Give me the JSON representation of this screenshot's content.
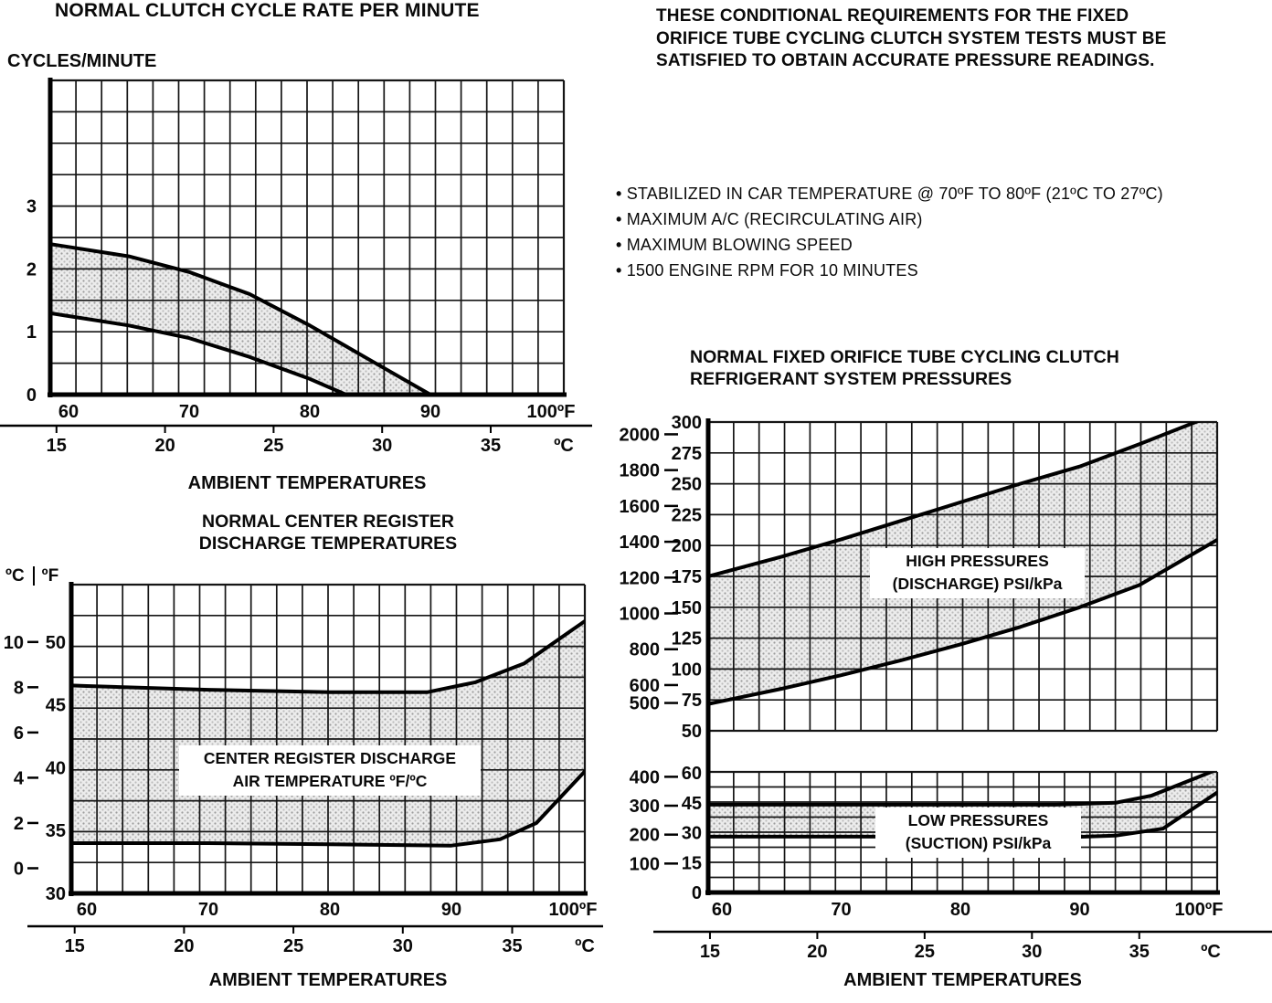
{
  "page": {
    "background": "#ffffff",
    "ink": "#0a0a0a"
  },
  "conditions": {
    "heading": "THESE CONDITIONAL REQUIREMENTS FOR THE FIXED ORIFICE TUBE CYCLING CLUTCH SYSTEM TESTS MUST BE SATISFIED TO OBTAIN ACCURATE PRESSURE READINGS.",
    "bullets": [
      "STABILIZED IN CAR TEMPERATURE @ 70ºF TO 80ºF (21ºC TO 27ºC)",
      "MAXIMUM A/C (RECIRCULATING AIR)",
      "MAXIMUM BLOWING SPEED",
      "1500 ENGINE RPM FOR 10 MINUTES"
    ]
  },
  "chart_data": [
    {
      "id": "normal-clutch-cycle-rate",
      "type": "line",
      "title": "NORMAL CLUTCH CYCLE RATE PER MINUTE",
      "ylabel": "CYCLES/MINUTE",
      "xlabel": "AMBIENT TEMPERATURES",
      "ylim": [
        0,
        5
      ],
      "y_ticks": [
        0,
        1,
        2,
        3
      ],
      "x_axis_f": {
        "ticks": [
          60,
          70,
          80,
          90,
          100
        ],
        "unit": "ºF"
      },
      "x_axis_c": {
        "ticks": [
          15,
          20,
          25,
          30,
          35
        ],
        "unit": "ºC"
      },
      "shaded_band_between_curves": true,
      "series": [
        {
          "name": "maximum-cycle-rate",
          "x_f": [
            60,
            65,
            70,
            75,
            80,
            85,
            90
          ],
          "y": [
            2.35,
            2.2,
            1.95,
            1.6,
            1.1,
            0.55,
            0
          ]
        },
        {
          "name": "minimum-cycle-rate",
          "x_f": [
            60,
            65,
            70,
            75,
            80,
            83
          ],
          "y": [
            1.25,
            1.1,
            0.9,
            0.6,
            0.25,
            0
          ]
        }
      ]
    },
    {
      "id": "normal-center-register-discharge-temperatures",
      "type": "line",
      "title_lines": [
        "NORMAL CENTER REGISTER",
        "DISCHARGE TEMPERATURES"
      ],
      "xlabel": "AMBIENT TEMPERATURES",
      "annotation_lines": [
        "CENTER REGISTER DISCHARGE",
        "AIR TEMPERATURE ºF/ºC"
      ],
      "y_axis_c": {
        "label": "ºC",
        "ticks": [
          10,
          8,
          6,
          4,
          2,
          0
        ]
      },
      "y_axis_f": {
        "label": "ºF",
        "ticks": [
          50,
          45,
          40,
          35,
          30
        ]
      },
      "x_axis_f": {
        "ticks": [
          60,
          70,
          80,
          90,
          100
        ],
        "unit": "ºF"
      },
      "x_axis_c": {
        "ticks": [
          15,
          20,
          25,
          30,
          35
        ],
        "unit": "ºC"
      },
      "shaded_band_between_curves": true,
      "series": [
        {
          "name": "maximum-discharge-temp-f",
          "x_f": [
            60,
            70,
            80,
            88,
            92,
            96,
            100
          ],
          "y": [
            46.5,
            46.2,
            46,
            46,
            46.8,
            48.3,
            51
          ]
        },
        {
          "name": "minimum-discharge-temp-f",
          "x_f": [
            60,
            70,
            80,
            90,
            94,
            97,
            100
          ],
          "y": [
            34,
            34,
            33.9,
            33.8,
            34.3,
            35.6,
            38.7
          ]
        }
      ]
    },
    {
      "id": "normal-refrigerant-system-pressures",
      "type": "line",
      "title_lines": [
        "NORMAL FIXED ORIFICE TUBE CYCLING CLUTCH",
        "REFRIGERANT SYSTEM PRESSURES"
      ],
      "xlabel": "AMBIENT TEMPERATURES",
      "x_axis_f": {
        "ticks": [
          60,
          70,
          80,
          90,
          100
        ],
        "unit": "ºF"
      },
      "x_axis_c": {
        "ticks": [
          15,
          20,
          25,
          30,
          35
        ],
        "unit": "ºC"
      },
      "panels": [
        {
          "name": "high-pressures-discharge",
          "label_lines": [
            "HIGH PRESSURES",
            "(DISCHARGE) PSI/kPa"
          ],
          "kpa_ticks": [
            2000,
            1800,
            1600,
            1400,
            1200,
            1000,
            800,
            600,
            500
          ],
          "psi_ticks": [
            300,
            275,
            250,
            225,
            200,
            175,
            150,
            125,
            100,
            75,
            50
          ],
          "shaded_band_between_curves": true,
          "series": [
            {
              "name": "high-pressure-max-psi",
              "x_f": [
                60,
                65,
                70,
                75,
                80,
                85,
                90,
                95,
                100
              ],
              "y": [
                178,
                191,
                205,
                220,
                235,
                250,
                264,
                282,
                301
              ]
            },
            {
              "name": "high-pressure-min-psi",
              "x_f": [
                60,
                65,
                70,
                75,
                80,
                85,
                90,
                95,
                100
              ],
              "y": [
                74,
                84,
                95,
                107,
                120,
                134,
                150,
                168,
                196
              ]
            }
          ]
        },
        {
          "name": "low-pressures-suction",
          "label_lines": [
            "LOW PRESSURES",
            "(SUCTION) PSI/kPa"
          ],
          "kpa_ticks": [
            400,
            300,
            200,
            100
          ],
          "psi_ticks": [
            60,
            45,
            30,
            15,
            0
          ],
          "shaded_band_between_curves": true,
          "series": [
            {
              "name": "low-pressure-max-psi",
              "x_f": [
                60,
                70,
                80,
                88,
                93,
                96,
                100
              ],
              "y": [
                44,
                44,
                44,
                44,
                45,
                48.5,
                58
              ]
            },
            {
              "name": "low-pressure-min-psi",
              "x_f": [
                60,
                70,
                80,
                88,
                93,
                97,
                100
              ],
              "y": [
                28,
                28,
                28,
                27.5,
                28.5,
                32,
                44
              ]
            }
          ]
        }
      ]
    }
  ]
}
